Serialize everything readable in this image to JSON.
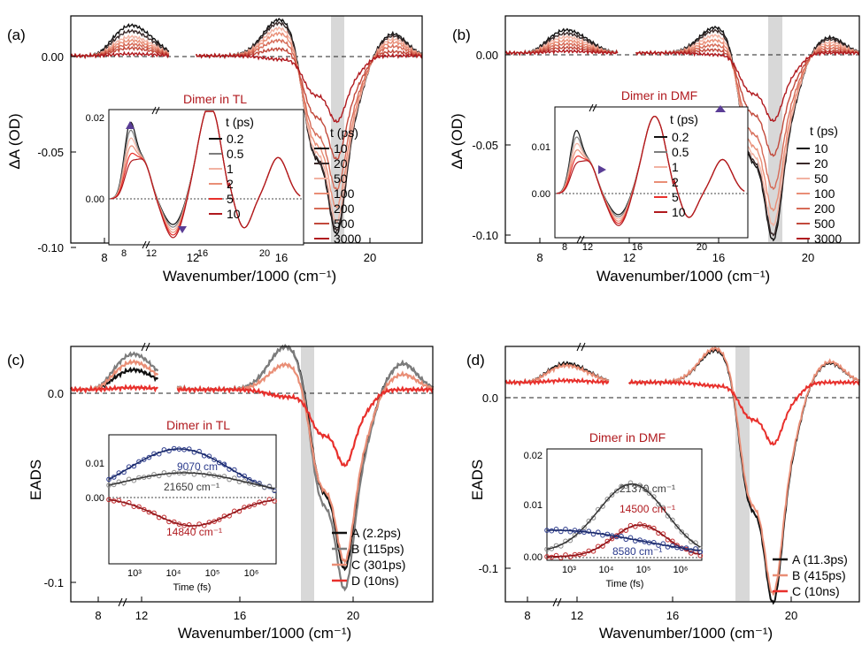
{
  "colors": {
    "black": "#111111",
    "grey": "#7d7d7d",
    "dark_red": "#b0191e",
    "red": "#e8302c",
    "light_red": "#f2b2a2",
    "salmon": "#e98e76",
    "mid_red": "#d66b57",
    "brown_red": "#c24a3c",
    "blue": "#2b3a8c",
    "band": "#d8d8d8"
  },
  "chart_data": [
    {
      "type": "line",
      "panel_label": "(a)",
      "xlabel": "Wavenumber/1000 (cm⁻¹)",
      "ylabel": "ΔA (OD)",
      "xlim": [
        6.8,
        22.6
      ],
      "ylim": [
        -0.108,
        0.023
      ],
      "x_ticks": [
        "8",
        "12",
        "16",
        "20"
      ],
      "y_ticks": [
        "0.00",
        "-0.05",
        "-0.10"
      ],
      "legend_title": "t (ps)",
      "legend_labels": [
        "10",
        "20",
        "50",
        "100",
        "200",
        "500",
        "3000"
      ],
      "inset": {
        "title": "Dimer in TL",
        "legend_title": "t (ps)",
        "legend_labels": [
          "0.2",
          "0.5",
          "1",
          "2",
          "5",
          "10"
        ],
        "x_ticks": [
          "8",
          "12",
          "16",
          "20"
        ],
        "y_ticks": [
          "0.02",
          "0.00"
        ]
      },
      "series": [
        {
          "name": "10",
          "amp": {
            "v": 0.016,
            "g": 0.021,
            "n": -0.1
          }
        },
        {
          "name": "20",
          "amp": {
            "v": 0.013,
            "g": 0.019,
            "n": -0.098
          }
        },
        {
          "name": "50",
          "amp": {
            "v": 0.01,
            "g": 0.016,
            "n": -0.093
          }
        },
        {
          "name": "100",
          "amp": {
            "v": 0.008,
            "g": 0.013,
            "n": -0.085
          }
        },
        {
          "name": "200",
          "amp": {
            "v": 0.006,
            "g": 0.009,
            "n": -0.075
          }
        },
        {
          "name": "500",
          "amp": {
            "v": 0.004,
            "g": 0.004,
            "n": -0.058
          }
        },
        {
          "name": "3000",
          "amp": {
            "v": 0.001,
            "g": -0.002,
            "n": -0.037
          }
        }
      ]
    },
    {
      "type": "line",
      "panel_label": "(b)",
      "xlabel": "Wavenumber/1000 (cm⁻¹)",
      "ylabel": "ΔA (OD)",
      "xlim": [
        6.8,
        22.6
      ],
      "ylim": [
        -0.118,
        0.023
      ],
      "x_ticks": [
        "8",
        "12",
        "16",
        "20"
      ],
      "y_ticks": [
        "0.00",
        "-0.05",
        "-0.10"
      ],
      "legend_title": "t (ps)",
      "legend_labels": [
        "10",
        "20",
        "50",
        "100",
        "200",
        "500",
        "3000"
      ],
      "inset": {
        "title": "Dimer in DMF",
        "legend_title": "t (ps)",
        "legend_labels": [
          "0.2",
          "0.5",
          "1",
          "2",
          "5",
          "10"
        ],
        "x_ticks": [
          "8",
          "12",
          "16",
          "20"
        ],
        "y_ticks": [
          "0.01",
          "0.00"
        ]
      },
      "series": [
        {
          "name": "10",
          "amp": {
            "v": 0.013,
            "g": 0.016,
            "n": -0.113
          }
        },
        {
          "name": "20",
          "amp": {
            "v": 0.011,
            "g": 0.014,
            "n": -0.11
          }
        },
        {
          "name": "50",
          "amp": {
            "v": 0.009,
            "g": 0.011,
            "n": -0.104
          }
        },
        {
          "name": "100",
          "amp": {
            "v": 0.007,
            "g": 0.008,
            "n": -0.095
          }
        },
        {
          "name": "200",
          "amp": {
            "v": 0.005,
            "g": 0.005,
            "n": -0.082
          }
        },
        {
          "name": "500",
          "amp": {
            "v": 0.003,
            "g": 0.002,
            "n": -0.062
          }
        },
        {
          "name": "3000",
          "amp": {
            "v": 0.001,
            "g": -0.001,
            "n": -0.041
          }
        }
      ]
    },
    {
      "type": "line",
      "panel_label": "(c)",
      "xlabel": "Wavenumber/1000 (cm⁻¹)",
      "ylabel": "EADS",
      "xlim": [
        6.8,
        22.6
      ],
      "ylim": [
        -0.118,
        0.024
      ],
      "x_ticks": [
        "8",
        "12",
        "16",
        "20"
      ],
      "y_ticks": [
        "0.0",
        "-0.1"
      ],
      "legend_labels": [
        "A (2.2ps)",
        "B (115ps)",
        "C (301ps)",
        "D (10ns)"
      ],
      "inset": {
        "title": "Dimer in TL",
        "xlabel": "Time (fs)",
        "x_ticks": [
          "10³",
          "10⁴",
          "10⁵",
          "10⁶"
        ],
        "y_ticks": [
          "0.01",
          "0.00"
        ],
        "annotations": [
          "9070 cm⁻¹",
          "21650 cm⁻¹",
          "14840 cm⁻¹"
        ]
      },
      "series": [
        {
          "name": "A (2.2ps)",
          "amp": {
            "v": 0.01,
            "g": 0.024,
            "n": -0.097
          }
        },
        {
          "name": "B (115ps)",
          "amp": {
            "v": 0.018,
            "g": 0.024,
            "n": -0.108
          }
        },
        {
          "name": "C (301ps)",
          "amp": {
            "v": 0.014,
            "g": 0.014,
            "n": -0.093
          }
        },
        {
          "name": "D (10ns)",
          "amp": {
            "v": 0.001,
            "g": -0.004,
            "n": -0.041
          }
        }
      ]
    },
    {
      "type": "line",
      "panel_label": "(d)",
      "xlabel": "Wavenumber/1000 (cm⁻¹)",
      "ylabel": "EADS",
      "xlim": [
        6.8,
        22.6
      ],
      "ylim": [
        -0.128,
        0.021
      ],
      "x_ticks": [
        "8",
        "12",
        "16",
        "20"
      ],
      "y_ticks": [
        "0.0",
        "-0.1"
      ],
      "legend_labels": [
        "A (11.3ps)",
        "B (415ps)",
        "C (10ns)"
      ],
      "inset": {
        "title": "Dimer in DMF",
        "xlabel": "Time (fs)",
        "x_ticks": [
          "10³",
          "10⁴",
          "10⁵",
          "10⁶"
        ],
        "y_ticks": [
          "0.02",
          "0.01",
          "0.00"
        ],
        "annotations": [
          "21370 cm⁻¹",
          "14500 cm⁻¹",
          "8580 cm⁻¹"
        ]
      },
      "series": [
        {
          "name": "A (11.3ps)",
          "amp": {
            "v": 0.01,
            "g": 0.019,
            "n": -0.125
          }
        },
        {
          "name": "B (415ps)",
          "amp": {
            "v": 0.009,
            "g": 0.02,
            "n": -0.12
          }
        },
        {
          "name": "C (10ns)",
          "amp": {
            "v": 0.001,
            "g": -0.002,
            "n": -0.035
          }
        }
      ]
    }
  ]
}
